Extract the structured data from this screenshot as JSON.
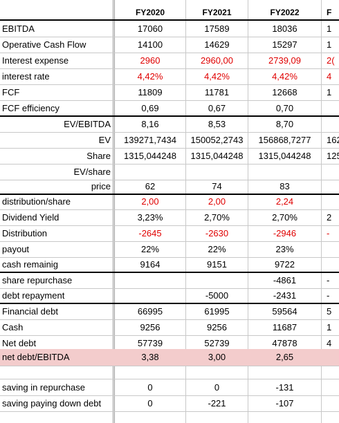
{
  "header": {
    "c1": "FY2020",
    "c2": "FY2021",
    "c3": "FY2022",
    "c4": "F"
  },
  "rows": [
    {
      "label": "EBITDA",
      "v": [
        "17060",
        "17589",
        "18036",
        "1"
      ]
    },
    {
      "label": "Operative Cash Flow",
      "v": [
        "14100",
        "14629",
        "15297",
        "1"
      ]
    },
    {
      "label": "Interest expense",
      "v": [
        "2960",
        "2960,00",
        "2739,09",
        "2("
      ]
    },
    {
      "label": "interest rate",
      "v": [
        "4,42%",
        "4,42%",
        "4,42%",
        "4"
      ]
    },
    {
      "label": "FCF",
      "v": [
        "11809",
        "11781",
        "12668",
        "1"
      ]
    },
    {
      "label": "FCF efficiency",
      "v": [
        "0,69",
        "0,67",
        "0,70",
        ""
      ]
    },
    {
      "label": "EV/EBITDA",
      "v": [
        "8,16",
        "8,53",
        "8,70",
        ""
      ]
    },
    {
      "label": "EV",
      "v": [
        "139271,7434",
        "150052,2743",
        "156868,7277",
        "162"
      ]
    },
    {
      "label": "Share",
      "v": [
        "1315,044248",
        "1315,044248",
        "1315,044248",
        "125"
      ]
    },
    {
      "label": "EV/share",
      "v": [
        "",
        "",
        "",
        ""
      ]
    },
    {
      "label": "price",
      "v": [
        "62",
        "74",
        "83",
        ""
      ]
    },
    {
      "label": "distribution/share",
      "v": [
        "2,00",
        "2,00",
        "2,24",
        ""
      ]
    },
    {
      "label": "Dividend Yield",
      "v": [
        "3,23%",
        "2,70%",
        "2,70%",
        "2"
      ]
    },
    {
      "label": "Distribution",
      "v": [
        "-2645",
        "-2630",
        "-2946",
        "-"
      ]
    },
    {
      "label": "payout",
      "v": [
        "22%",
        "22%",
        "23%",
        ""
      ]
    },
    {
      "label": "cash remainig",
      "v": [
        "9164",
        "9151",
        "9722",
        ""
      ]
    },
    {
      "label": "share repurchase",
      "v": [
        "",
        "",
        "-4861",
        "-"
      ]
    },
    {
      "label": "debt repayment",
      "v": [
        "",
        "-5000",
        "-2431",
        "-"
      ]
    },
    {
      "label": "Financial debt",
      "v": [
        "66995",
        "61995",
        "59564",
        "5"
      ]
    },
    {
      "label": "Cash",
      "v": [
        "9256",
        "9256",
        "11687",
        "1"
      ]
    },
    {
      "label": "Net debt",
      "v": [
        "57739",
        "52739",
        "47878",
        "4"
      ]
    },
    {
      "label": "net debt/EBITDA",
      "v": [
        "3,38",
        "3,00",
        "2,65",
        ""
      ]
    },
    {
      "label": "",
      "v": [
        "",
        "",
        "",
        ""
      ]
    },
    {
      "label": "saving in repurchase",
      "v": [
        "0",
        "0",
        "-131",
        ""
      ]
    },
    {
      "label": "saving paying down debt",
      "v": [
        "0",
        "-221",
        "-107",
        ""
      ]
    }
  ]
}
